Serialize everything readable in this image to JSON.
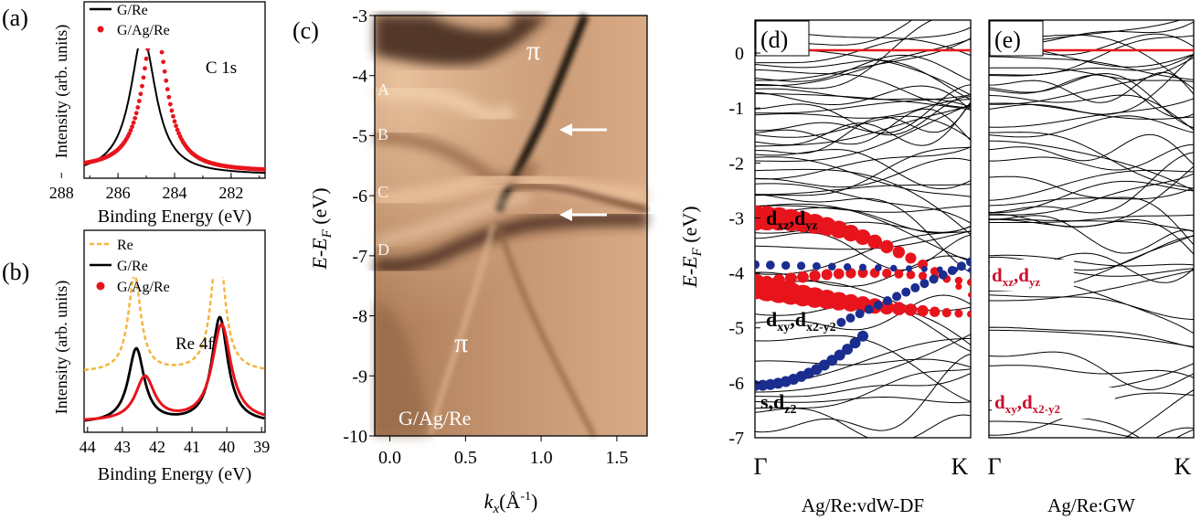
{
  "colors": {
    "red": "#e8141c",
    "black": "#000000",
    "orange": "#f5b53b",
    "blue": "#1b2d8f",
    "darkred": "#c8102e",
    "arpes_light": "#e2b793",
    "arpes_mid": "#c08a62",
    "arpes_dark": "#3a2414"
  },
  "chart_data": [
    {
      "panel": "(a)",
      "type": "line",
      "xlabel": "Binding Energy (eV)",
      "ylabel": "Intensity (arb. units)",
      "x_ticks": [
        "288",
        "286",
        "284",
        "282"
      ],
      "xlim": [
        287.2,
        280.8
      ],
      "ylim": [
        0,
        1.12
      ],
      "annotation": "C 1s",
      "series": [
        {
          "name": "G/Re",
          "style": "black-solid",
          "peak": 285.1,
          "width": 0.55,
          "height": 0.86,
          "baseline": 0.02
        },
        {
          "name": "G/Ag/Re",
          "style": "red-dots",
          "peak": 284.7,
          "width": 0.5,
          "height": 0.95,
          "baseline": 0.02
        }
      ]
    },
    {
      "panel": "(b)",
      "type": "line",
      "xlabel": "Binding Energy (eV)",
      "ylabel": "Intensity (arb. units)",
      "x_ticks": [
        "44",
        "43",
        "42",
        "41",
        "40",
        "39"
      ],
      "xlim": [
        44.1,
        38.9
      ],
      "ylim": [
        0,
        1.15
      ],
      "annotation": "Re 4f",
      "series": [
        {
          "name": "Re",
          "style": "orange-dashed",
          "peaks": [
            42.65,
            40.25
          ],
          "heights": [
            0.55,
            0.78
          ],
          "width": 0.22,
          "baseline": 0.34
        },
        {
          "name": "G/Re",
          "style": "black-solid",
          "peaks": [
            42.6,
            40.2
          ],
          "heights": [
            0.42,
            0.6
          ],
          "width": 0.28,
          "baseline": 0.05
        },
        {
          "name": "G/Ag/Re",
          "style": "red-solid",
          "peaks": [
            42.35,
            40.15
          ],
          "heights": [
            0.25,
            0.55
          ],
          "width": 0.33,
          "baseline": 0.06
        }
      ]
    },
    {
      "panel": "(c)",
      "type": "heatmap",
      "xlabel": "kx(Å⁻¹)",
      "ylabel": "E-EF (eV)",
      "x_ticks": [
        "0.0",
        "0.5",
        "1.0",
        "1.5"
      ],
      "xlim": [
        -0.1,
        1.7
      ],
      "y_ticks": [
        "-3",
        "-4",
        "-5",
        "-6",
        "-7",
        "-8",
        "-9",
        "-10"
      ],
      "ylim": [
        -10,
        -3
      ],
      "labels": {
        "A": -4.35,
        "B": -4.95,
        "C": -6.1,
        "D": -6.9
      },
      "pi_label": "π",
      "sample_label": "G/Ag/Re",
      "arrows_at": [
        -4.85,
        -6.3
      ]
    },
    {
      "panel": "(d)",
      "type": "line",
      "method": "Ag/Re:vdW-DF",
      "ylabel": "E-EF (eV)",
      "x_ticks": [
        "Γ",
        "K"
      ],
      "y_ticks": [
        "0",
        "-1",
        "-2",
        "-3",
        "-4",
        "-5",
        "-6",
        "-7"
      ],
      "ylim": [
        -7,
        0.6
      ],
      "orbital_labels": [
        "dxz,dyz",
        "dxy,dx2-y2",
        "s,dz2"
      ],
      "fermi_level": 0
    },
    {
      "panel": "(e)",
      "type": "line",
      "method": "Ag/Re:GW",
      "x_ticks": [
        "Γ",
        "K"
      ],
      "ylim": [
        -7,
        0.6
      ],
      "orbital_labels": [
        "dxz,dyz",
        "dxy,dx2-y2"
      ],
      "fermi_level": 0
    }
  ]
}
